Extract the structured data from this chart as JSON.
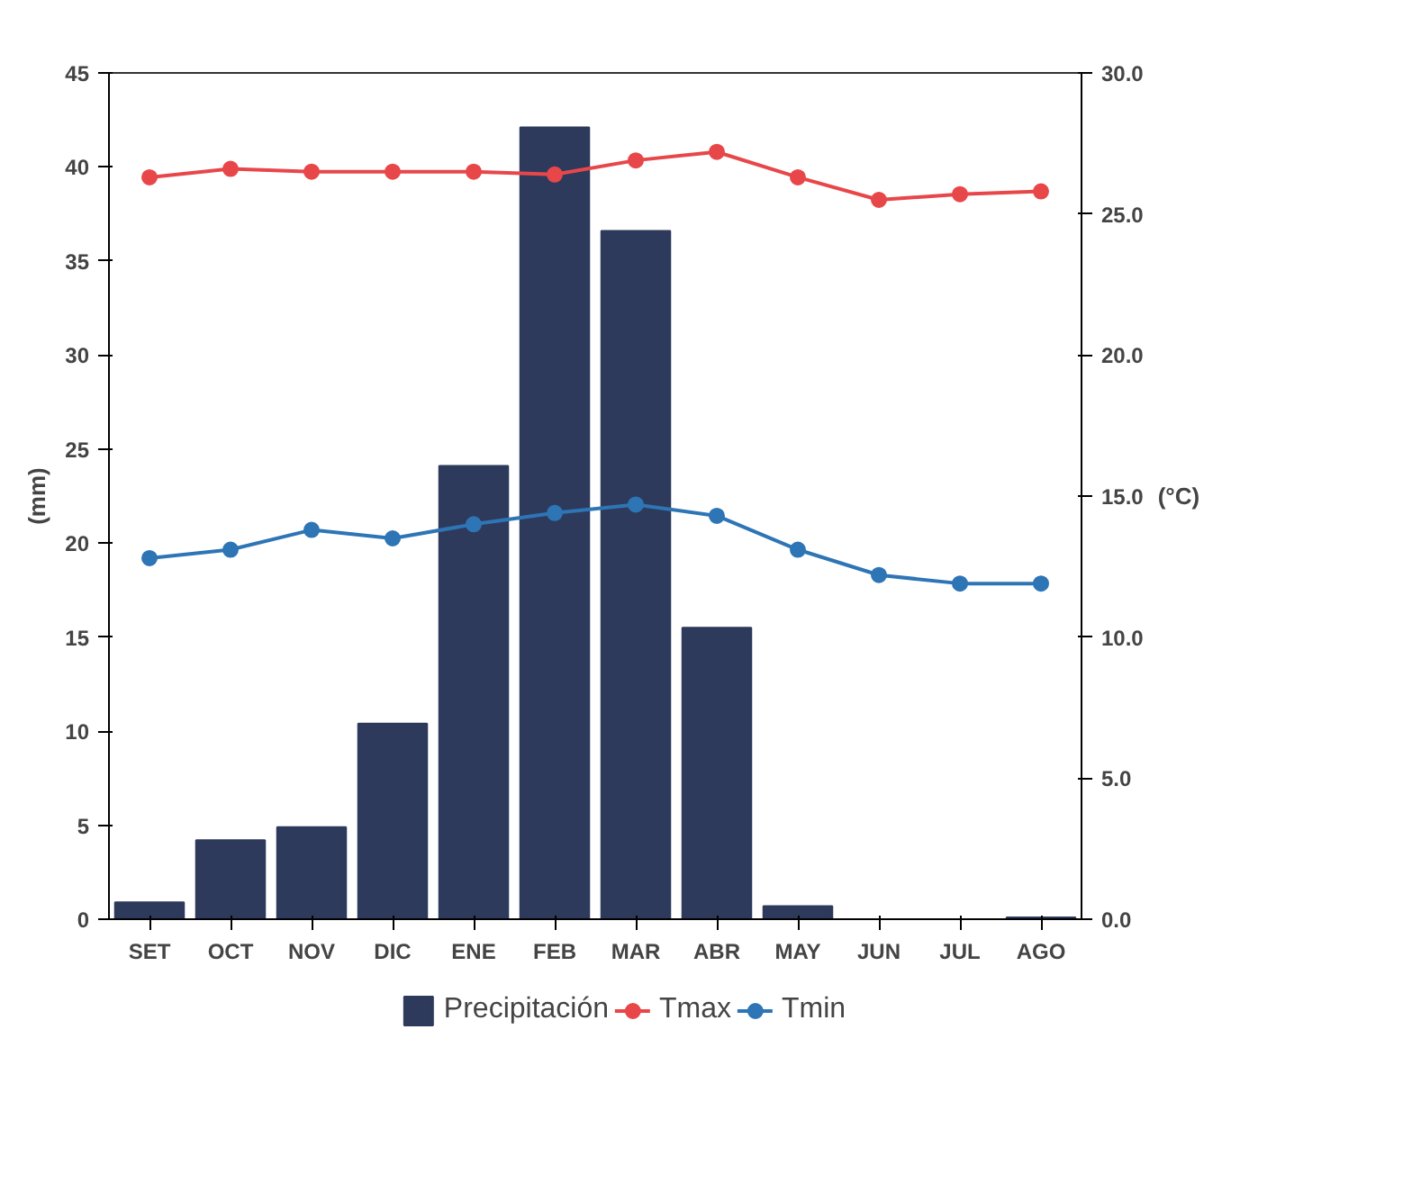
{
  "chart_data": {
    "type": "bar",
    "ylabel": "(mm)",
    "y2label": "(°C)",
    "categories": [
      "SET",
      "OCT",
      "NOV",
      "DIC",
      "ENE",
      "FEB",
      "MAR",
      "ABR",
      "MAY",
      "JUN",
      "JUL",
      "AGO"
    ],
    "series": [
      {
        "name": "Precipitación",
        "color": "#2e3a5c",
        "values": [
          0.9,
          4.2,
          4.9,
          10.4,
          24.1,
          42.1,
          36.6,
          15.5,
          0.7,
          0,
          0,
          0.1
        ]
      },
      {
        "name": "Tmax",
        "type": "line",
        "axis": "y2",
        "color": "#e8474a",
        "values": [
          26.3,
          26.6,
          26.5,
          26.5,
          26.5,
          26.4,
          26.9,
          27.2,
          26.3,
          25.5,
          25.7,
          25.8
        ]
      },
      {
        "name": "Tmin",
        "type": "line",
        "axis": "y2",
        "color": "#2e75b6",
        "values": [
          12.8,
          13.1,
          13.8,
          13.5,
          14.0,
          14.4,
          14.7,
          14.3,
          13.1,
          12.2,
          11.9,
          11.9
        ]
      }
    ],
    "ylim": [
      0,
      45
    ],
    "yticks": [
      0,
      5,
      10,
      15,
      20,
      25,
      30,
      35,
      40,
      45
    ],
    "y2lim": [
      0,
      30
    ],
    "y2ticks": [
      {
        "value": 0,
        "label": "0.0"
      },
      {
        "value": 5,
        "label": "5.0"
      },
      {
        "value": 10,
        "label": "10.0"
      },
      {
        "value": 15,
        "label": "15.0"
      },
      {
        "value": 20,
        "label": "20.0"
      },
      {
        "value": 25,
        "label": "25.0"
      },
      {
        "value": 30,
        "label": "30.0"
      }
    ],
    "marker": "circle",
    "grid": false,
    "legend": "bottom"
  }
}
